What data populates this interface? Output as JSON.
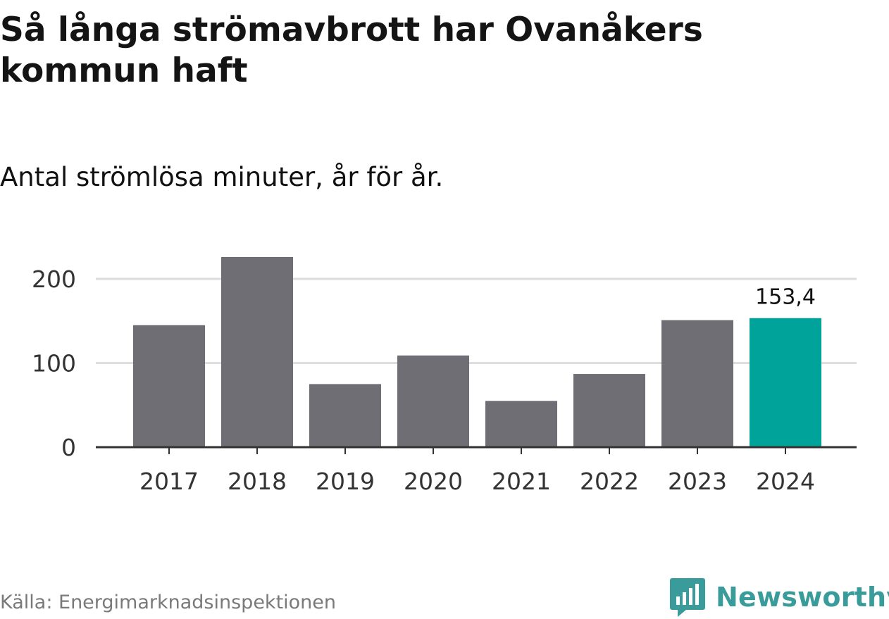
{
  "header": {
    "title": "Så långa strömavbrott har Ovanåkers kommun haft",
    "subtitle": "Antal strömlösa minuter, år för år."
  },
  "footer": {
    "source": "Källa: Energimarknadsinspektionen",
    "brand": "Newsworthy"
  },
  "colors": {
    "bar": "#6f6e74",
    "highlight": "#00a39a",
    "grid": "#dddddd",
    "axis": "#333333",
    "brand": "#3a9c9a"
  },
  "chart_data": {
    "type": "bar",
    "title": "Så långa strömavbrott har Ovanåkers kommun haft",
    "subtitle": "Antal strömlösa minuter, år för år.",
    "categories": [
      "2017",
      "2018",
      "2019",
      "2020",
      "2021",
      "2022",
      "2023",
      "2024"
    ],
    "values": [
      145,
      226,
      75,
      109,
      55,
      87,
      151,
      153.4
    ],
    "highlight_index": 7,
    "highlight_label": "153,4",
    "yticks": [
      0,
      100,
      200
    ],
    "ylim": [
      0,
      226
    ],
    "xlabel": "",
    "ylabel": "",
    "grid": true
  }
}
